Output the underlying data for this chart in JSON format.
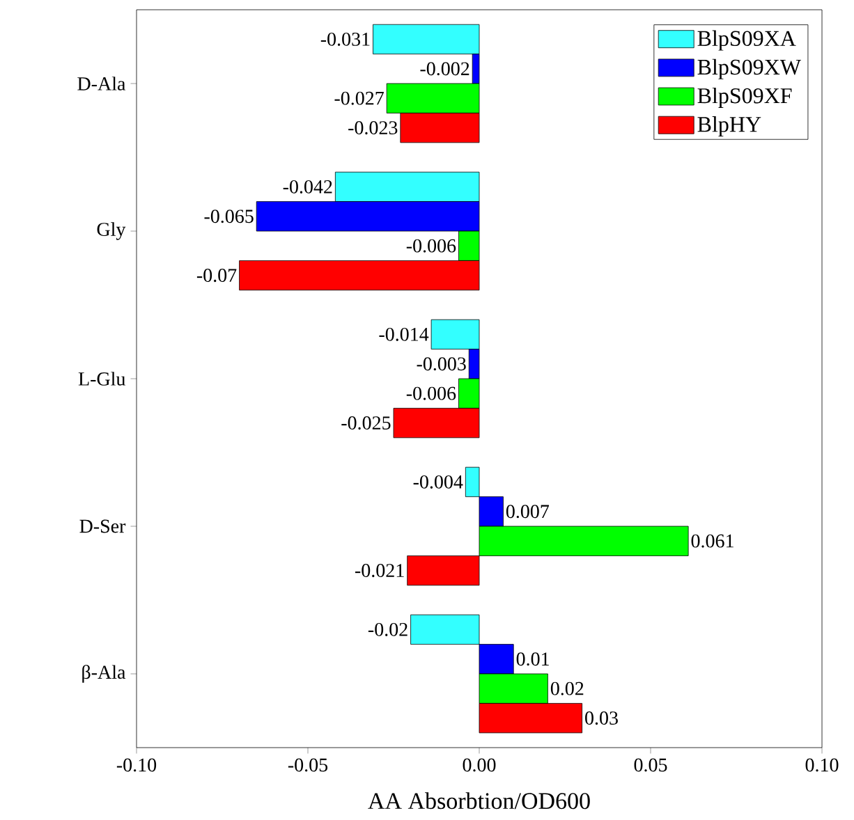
{
  "chart_data": {
    "type": "bar",
    "orientation": "horizontal",
    "xlabel": "AA Absorbtion/OD600",
    "categories": [
      "D-Ala",
      "Gly",
      "L-Glu",
      "D-Ser",
      "β-Ala"
    ],
    "xlim": [
      -0.1,
      0.1
    ],
    "xticks": [
      {
        "value": -0.1,
        "label": "-0.10"
      },
      {
        "value": -0.05,
        "label": "-0.05"
      },
      {
        "value": 0,
        "label": "0.00"
      },
      {
        "value": 0.05,
        "label": "0.05"
      },
      {
        "value": 0.1,
        "label": "0.10"
      }
    ],
    "legend": "top right",
    "grid": false,
    "series": [
      {
        "name": "BlpS09XA",
        "color": "#33ffff",
        "values": [
          -0.031,
          -0.042,
          -0.014,
          -0.004,
          -0.02
        ],
        "value_labels": [
          "-0.031",
          "-0.042",
          "-0.014",
          "-0.004",
          "-0.02"
        ]
      },
      {
        "name": "BlpS09XW",
        "color": "#0000ff",
        "values": [
          -0.002,
          -0.065,
          -0.003,
          0.007,
          0.01
        ],
        "value_labels": [
          "-0.002",
          "-0.065",
          "-0.003",
          "0.007",
          "0.01"
        ]
      },
      {
        "name": "BlpS09XF",
        "color": "#00ff00",
        "values": [
          -0.027,
          -0.006,
          -0.006,
          0.061,
          0.02
        ],
        "value_labels": [
          "-0.027",
          "-0.006",
          "-0.006",
          "0.061",
          "0.02"
        ]
      },
      {
        "name": "BlpHY",
        "color": "#ff0000",
        "values": [
          -0.023,
          -0.07,
          -0.025,
          -0.021,
          0.03
        ],
        "value_labels": [
          "-0.023",
          "-0.07",
          "-0.025",
          "-0.021",
          "0.03"
        ]
      }
    ]
  }
}
